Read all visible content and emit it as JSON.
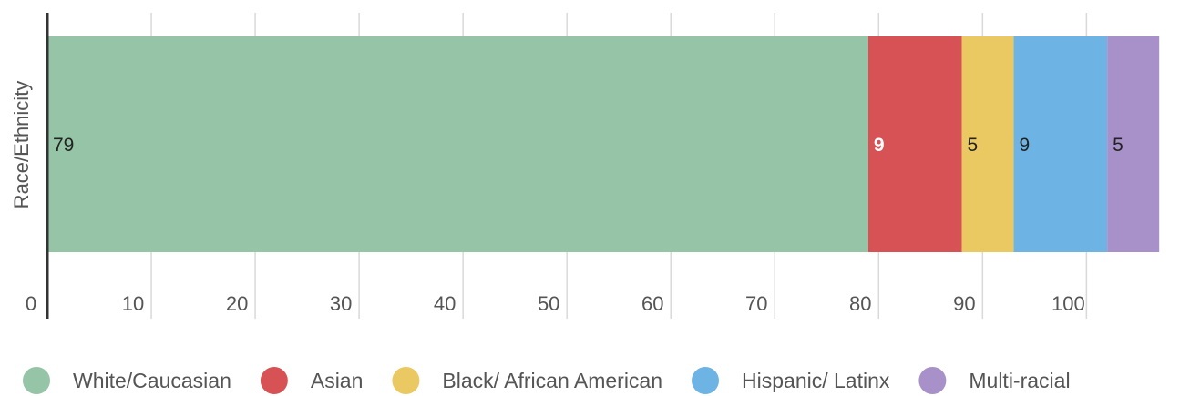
{
  "chart_data": {
    "type": "bar",
    "orientation": "horizontal",
    "stacked": true,
    "category_axis_label": "Race/Ethnicity",
    "xlim": [
      0,
      109
    ],
    "x_ticks": [
      0,
      10,
      20,
      30,
      40,
      50,
      60,
      70,
      80,
      90,
      100
    ],
    "grid": true,
    "legend_position": "bottom",
    "series": [
      {
        "name": "White/Caucasian",
        "value": 79,
        "color": "#96c4a6",
        "label_color": "#222222"
      },
      {
        "name": "Asian",
        "value": 9,
        "color": "#d65254",
        "label_color": "#ffffff"
      },
      {
        "name": "Black/ African American",
        "value": 5,
        "color": "#ebc962",
        "label_color": "#222222"
      },
      {
        "name": "Hispanic/ Latinx",
        "value": 9,
        "color": "#6db4e4",
        "label_color": "#222222"
      },
      {
        "name": "Multi-racial",
        "value": 5,
        "color": "#a890c8",
        "label_color": "#222222"
      }
    ]
  }
}
